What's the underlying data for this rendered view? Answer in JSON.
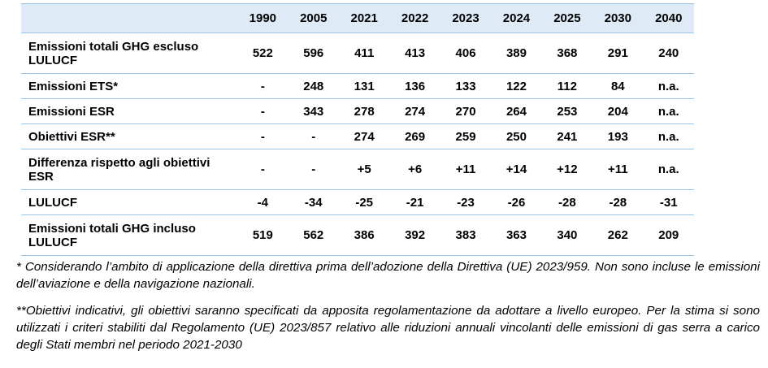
{
  "table": {
    "header_label": "",
    "years": [
      "1990",
      "2005",
      "2021",
      "2022",
      "2023",
      "2024",
      "2025",
      "2030",
      "2040"
    ],
    "rows": [
      {
        "label": "Emissioni totali GHG escluso LULUCF",
        "values": [
          "522",
          "596",
          "411",
          "413",
          "406",
          "389",
          "368",
          "291",
          "240"
        ]
      },
      {
        "label": "Emissioni ETS*",
        "values": [
          "-",
          "248",
          "131",
          "136",
          "133",
          "122",
          "112",
          "84",
          "n.a."
        ]
      },
      {
        "label": "Emissioni ESR",
        "values": [
          "-",
          "343",
          "278",
          "274",
          "270",
          "264",
          "253",
          "204",
          "n.a."
        ]
      },
      {
        "label": "Obiettivi ESR**",
        "values": [
          "-",
          "-",
          "274",
          "269",
          "259",
          "250",
          "241",
          "193",
          "n.a."
        ]
      },
      {
        "label": "Differenza rispetto agli obiettivi ESR",
        "values": [
          "-",
          "-",
          "+5",
          "+6",
          "+11",
          "+14",
          "+12",
          "+11",
          "n.a."
        ]
      },
      {
        "label": "LULUCF",
        "values": [
          "-4",
          "-34",
          "-25",
          "-21",
          "-23",
          "-26",
          "-28",
          "-28",
          "-31"
        ]
      },
      {
        "label": "Emissioni totali GHG incluso LULUCF",
        "values": [
          "519",
          "562",
          "386",
          "392",
          "383",
          "363",
          "340",
          "262",
          "209"
        ]
      }
    ]
  },
  "notes": [
    "* Considerando l’ambito di applicazione della direttiva prima dell’adozione della Direttiva (UE) 2023/959. Non sono incluse le emissioni dell’aviazione e della navigazione nazionali.",
    "**Obiettivi indicativi, gli obiettivi saranno specificati da apposita regolamentazione da adottare a livello europeo. Per la stima si sono utilizzati i criteri stabiliti dal Regolamento (UE) 2023/857 relativo alle riduzioni annuali vincolanti delle emissioni di gas serra a carico degli Stati membri nel periodo 2021-2030"
  ],
  "colors": {
    "header_background": "#deebf7",
    "rule": "#9dc3e6",
    "text": "#000000"
  }
}
